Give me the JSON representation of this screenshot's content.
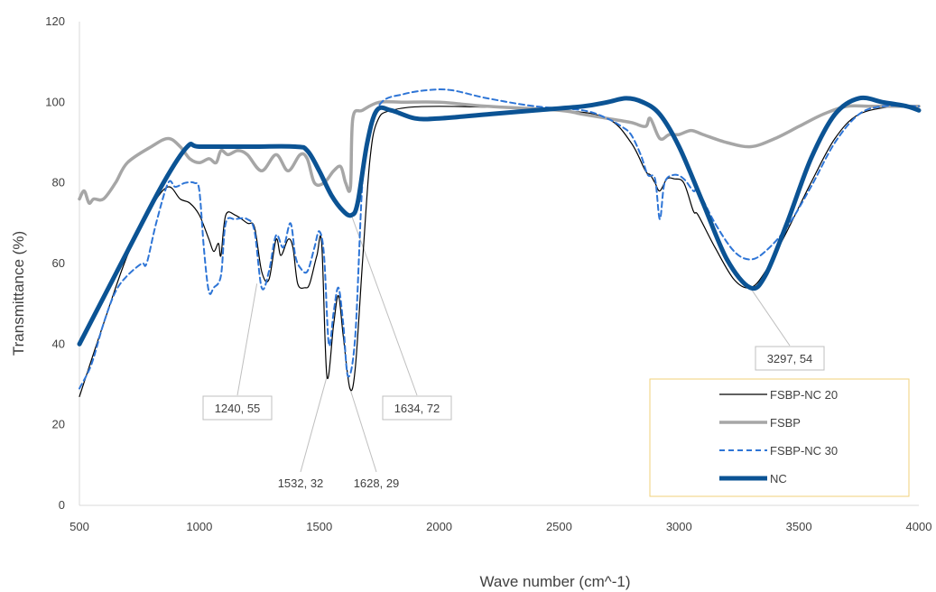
{
  "chart_data": {
    "type": "line",
    "xlabel": "Wave number (cm^-1)",
    "ylabel": "Transmittance (%)",
    "xlim": [
      500,
      4000
    ],
    "ylim": [
      0,
      120
    ],
    "x_ticks": [
      500,
      1000,
      1500,
      2000,
      2500,
      3000,
      3500,
      4000
    ],
    "y_ticks": [
      0,
      20,
      40,
      60,
      80,
      100,
      120
    ],
    "grid": false,
    "legend_position": "bottom-right",
    "colors": {
      "FSBP-NC 20": "#000000",
      "FSBP": "#a6a6a6",
      "FSBP-NC 30": "#2e75d6",
      "NC": "#0b5394",
      "legend_border": "#f2d27a",
      "annotation_line": "#bfbfbf"
    },
    "series": [
      {
        "name": "FSBP-NC 20",
        "style": "thin-solid",
        "points": [
          [
            500,
            27
          ],
          [
            600,
            45
          ],
          [
            700,
            62
          ],
          [
            800,
            74
          ],
          [
            870,
            79
          ],
          [
            920,
            76
          ],
          [
            960,
            75
          ],
          [
            1000,
            72
          ],
          [
            1040,
            66
          ],
          [
            1060,
            63
          ],
          [
            1080,
            65
          ],
          [
            1090,
            62
          ],
          [
            1110,
            72
          ],
          [
            1150,
            72
          ],
          [
            1200,
            70
          ],
          [
            1230,
            69
          ],
          [
            1260,
            58
          ],
          [
            1290,
            56
          ],
          [
            1320,
            66
          ],
          [
            1340,
            62
          ],
          [
            1370,
            66
          ],
          [
            1390,
            64
          ],
          [
            1410,
            55
          ],
          [
            1440,
            54
          ],
          [
            1460,
            55
          ],
          [
            1490,
            62
          ],
          [
            1510,
            65
          ],
          [
            1532,
            32
          ],
          [
            1560,
            45
          ],
          [
            1580,
            52
          ],
          [
            1600,
            42
          ],
          [
            1628,
            29
          ],
          [
            1650,
            34
          ],
          [
            1680,
            60
          ],
          [
            1710,
            85
          ],
          [
            1740,
            95
          ],
          [
            1800,
            98
          ],
          [
            2000,
            99
          ],
          [
            2500,
            98
          ],
          [
            2700,
            96
          ],
          [
            2800,
            90
          ],
          [
            2860,
            83
          ],
          [
            2880,
            82
          ],
          [
            2900,
            80
          ],
          [
            2920,
            78
          ],
          [
            2950,
            81
          ],
          [
            2980,
            81
          ],
          [
            3020,
            80
          ],
          [
            3060,
            73
          ],
          [
            3080,
            72
          ],
          [
            3150,
            64
          ],
          [
            3230,
            56
          ],
          [
            3297,
            54
          ],
          [
            3360,
            58
          ],
          [
            3450,
            68
          ],
          [
            3550,
            80
          ],
          [
            3650,
            91
          ],
          [
            3750,
            97
          ],
          [
            3900,
            99
          ],
          [
            4000,
            99
          ]
        ]
      },
      {
        "name": "FSBP",
        "style": "thick-gray",
        "points": [
          [
            500,
            76
          ],
          [
            520,
            78
          ],
          [
            540,
            75
          ],
          [
            560,
            76
          ],
          [
            600,
            76
          ],
          [
            650,
            80
          ],
          [
            700,
            85
          ],
          [
            800,
            89
          ],
          [
            870,
            91
          ],
          [
            920,
            89
          ],
          [
            960,
            86
          ],
          [
            1000,
            85
          ],
          [
            1040,
            86
          ],
          [
            1070,
            85
          ],
          [
            1090,
            88
          ],
          [
            1120,
            87
          ],
          [
            1160,
            88
          ],
          [
            1200,
            87
          ],
          [
            1260,
            83
          ],
          [
            1320,
            87
          ],
          [
            1370,
            83
          ],
          [
            1420,
            87
          ],
          [
            1450,
            86
          ],
          [
            1480,
            80
          ],
          [
            1520,
            80
          ],
          [
            1560,
            83
          ],
          [
            1590,
            84
          ],
          [
            1610,
            80
          ],
          [
            1630,
            79
          ],
          [
            1640,
            96
          ],
          [
            1680,
            98
          ],
          [
            1750,
            100
          ],
          [
            1850,
            100
          ],
          [
            2000,
            100
          ],
          [
            2200,
            99
          ],
          [
            2500,
            98
          ],
          [
            2600,
            97
          ],
          [
            2700,
            96
          ],
          [
            2800,
            95
          ],
          [
            2860,
            94
          ],
          [
            2880,
            96
          ],
          [
            2920,
            91
          ],
          [
            2960,
            92
          ],
          [
            3000,
            92
          ],
          [
            3050,
            93
          ],
          [
            3100,
            92
          ],
          [
            3200,
            90
          ],
          [
            3300,
            89
          ],
          [
            3400,
            91
          ],
          [
            3500,
            94
          ],
          [
            3600,
            97
          ],
          [
            3700,
            99
          ],
          [
            3800,
            99
          ],
          [
            4000,
            99
          ]
        ]
      },
      {
        "name": "FSBP-NC 30",
        "style": "dashed",
        "points": [
          [
            500,
            29
          ],
          [
            550,
            35
          ],
          [
            600,
            45
          ],
          [
            650,
            53
          ],
          [
            700,
            57
          ],
          [
            760,
            60
          ],
          [
            780,
            60
          ],
          [
            820,
            70
          ],
          [
            870,
            80
          ],
          [
            900,
            79
          ],
          [
            940,
            80
          ],
          [
            980,
            80
          ],
          [
            1000,
            78
          ],
          [
            1020,
            63
          ],
          [
            1040,
            53
          ],
          [
            1060,
            54
          ],
          [
            1090,
            57
          ],
          [
            1110,
            70
          ],
          [
            1150,
            71
          ],
          [
            1200,
            71
          ],
          [
            1230,
            68
          ],
          [
            1260,
            54
          ],
          [
            1290,
            58
          ],
          [
            1320,
            67
          ],
          [
            1350,
            64
          ],
          [
            1380,
            70
          ],
          [
            1400,
            62
          ],
          [
            1420,
            59
          ],
          [
            1450,
            58
          ],
          [
            1480,
            64
          ],
          [
            1500,
            68
          ],
          [
            1520,
            62
          ],
          [
            1540,
            40
          ],
          [
            1560,
            48
          ],
          [
            1580,
            54
          ],
          [
            1600,
            45
          ],
          [
            1620,
            32
          ],
          [
            1650,
            42
          ],
          [
            1680,
            80
          ],
          [
            1710,
            93
          ],
          [
            1760,
            100
          ],
          [
            1850,
            102
          ],
          [
            1950,
            103
          ],
          [
            2050,
            103
          ],
          [
            2200,
            101
          ],
          [
            2400,
            99
          ],
          [
            2600,
            98
          ],
          [
            2700,
            96
          ],
          [
            2760,
            94
          ],
          [
            2800,
            92
          ],
          [
            2840,
            87
          ],
          [
            2870,
            82
          ],
          [
            2900,
            81
          ],
          [
            2920,
            71
          ],
          [
            2940,
            80
          ],
          [
            2980,
            82
          ],
          [
            3020,
            81
          ],
          [
            3060,
            78
          ],
          [
            3080,
            78
          ],
          [
            3150,
            70
          ],
          [
            3230,
            63
          ],
          [
            3297,
            61
          ],
          [
            3360,
            63
          ],
          [
            3450,
            69
          ],
          [
            3550,
            79
          ],
          [
            3650,
            90
          ],
          [
            3750,
            97
          ],
          [
            3850,
            99
          ],
          [
            4000,
            99
          ]
        ]
      },
      {
        "name": "NC",
        "style": "thick-blue",
        "points": [
          [
            500,
            40
          ],
          [
            700,
            63
          ],
          [
            850,
            80
          ],
          [
            950,
            89
          ],
          [
            1000,
            89
          ],
          [
            1200,
            89
          ],
          [
            1400,
            89
          ],
          [
            1450,
            88
          ],
          [
            1500,
            83
          ],
          [
            1550,
            77
          ],
          [
            1600,
            73
          ],
          [
            1634,
            72
          ],
          [
            1660,
            75
          ],
          [
            1700,
            90
          ],
          [
            1740,
            98
          ],
          [
            1800,
            98
          ],
          [
            1900,
            96
          ],
          [
            2000,
            96
          ],
          [
            2200,
            97
          ],
          [
            2400,
            98
          ],
          [
            2600,
            99
          ],
          [
            2700,
            100
          ],
          [
            2780,
            101
          ],
          [
            2850,
            100
          ],
          [
            2920,
            97
          ],
          [
            3000,
            89
          ],
          [
            3100,
            75
          ],
          [
            3200,
            61
          ],
          [
            3297,
            54
          ],
          [
            3360,
            57
          ],
          [
            3450,
            70
          ],
          [
            3550,
            86
          ],
          [
            3650,
            97
          ],
          [
            3750,
            101
          ],
          [
            3850,
            100
          ],
          [
            3950,
            99
          ],
          [
            4000,
            98
          ]
        ]
      }
    ],
    "annotations": [
      {
        "label": "1240, 55",
        "x": 1240,
        "y": 55
      },
      {
        "label": "1532, 32",
        "x": 1532,
        "y": 32
      },
      {
        "label": "1628, 29",
        "x": 1628,
        "y": 29
      },
      {
        "label": "1634, 72",
        "x": 1634,
        "y": 72
      },
      {
        "label": "3297, 54",
        "x": 3297,
        "y": 54
      }
    ],
    "legend": [
      "FSBP-NC 20",
      "FSBP",
      "FSBP-NC 30",
      "NC"
    ]
  }
}
